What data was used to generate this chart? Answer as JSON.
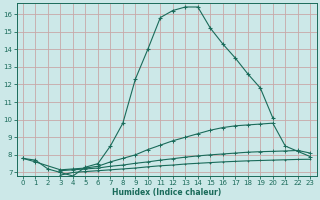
{
  "xlabel": "Humidex (Indice chaleur)",
  "bg_color": "#cce8e8",
  "grid_color": "#c8a8a8",
  "line_color": "#1a6b5a",
  "xlim": [
    -0.5,
    23.5
  ],
  "ylim": [
    6.8,
    16.6
  ],
  "xticks": [
    0,
    1,
    2,
    3,
    4,
    5,
    6,
    7,
    8,
    9,
    10,
    11,
    12,
    13,
    14,
    15,
    16,
    17,
    18,
    19,
    20,
    21,
    22,
    23
  ],
  "yticks": [
    7,
    8,
    9,
    10,
    11,
    12,
    13,
    14,
    15,
    16
  ],
  "series1_x": [
    0,
    1,
    2,
    3,
    4,
    5,
    6,
    7,
    8,
    9,
    10,
    11,
    12,
    13,
    14,
    15,
    16,
    17,
    18,
    19,
    20
  ],
  "series1_y": [
    7.8,
    7.7,
    7.2,
    7.0,
    6.8,
    7.3,
    7.5,
    8.5,
    9.8,
    12.3,
    14.0,
    15.8,
    16.2,
    16.4,
    16.4,
    15.2,
    14.3,
    13.5,
    12.6,
    11.8,
    10.1
  ],
  "series2_x": [
    0,
    1,
    3,
    4,
    5,
    6,
    7,
    8,
    9,
    10,
    11,
    12,
    13,
    14,
    15,
    16,
    17,
    18,
    19,
    20,
    21,
    22,
    23
  ],
  "series2_y": [
    7.8,
    7.6,
    7.15,
    7.2,
    7.25,
    7.35,
    7.6,
    7.8,
    8.0,
    8.3,
    8.55,
    8.8,
    9.0,
    9.2,
    9.4,
    9.55,
    9.65,
    9.7,
    9.75,
    9.8,
    8.5,
    8.2,
    7.9
  ],
  "series3_x": [
    3,
    4,
    5,
    6,
    7,
    8,
    9,
    10,
    11,
    12,
    13,
    14,
    15,
    16,
    17,
    18,
    19,
    20,
    21,
    22,
    23
  ],
  "series3_y": [
    7.1,
    7.15,
    7.2,
    7.25,
    7.35,
    7.42,
    7.52,
    7.6,
    7.7,
    7.78,
    7.87,
    7.94,
    8.0,
    8.05,
    8.1,
    8.15,
    8.18,
    8.2,
    8.22,
    8.25,
    8.1
  ],
  "series4_x": [
    3,
    4,
    5,
    6,
    7,
    8,
    9,
    10,
    11,
    12,
    13,
    14,
    15,
    16,
    17,
    18,
    19,
    20,
    21,
    22,
    23
  ],
  "series4_y": [
    6.85,
    7.0,
    7.05,
    7.1,
    7.15,
    7.2,
    7.25,
    7.32,
    7.38,
    7.42,
    7.48,
    7.52,
    7.56,
    7.6,
    7.63,
    7.66,
    7.68,
    7.7,
    7.72,
    7.74,
    7.75
  ]
}
